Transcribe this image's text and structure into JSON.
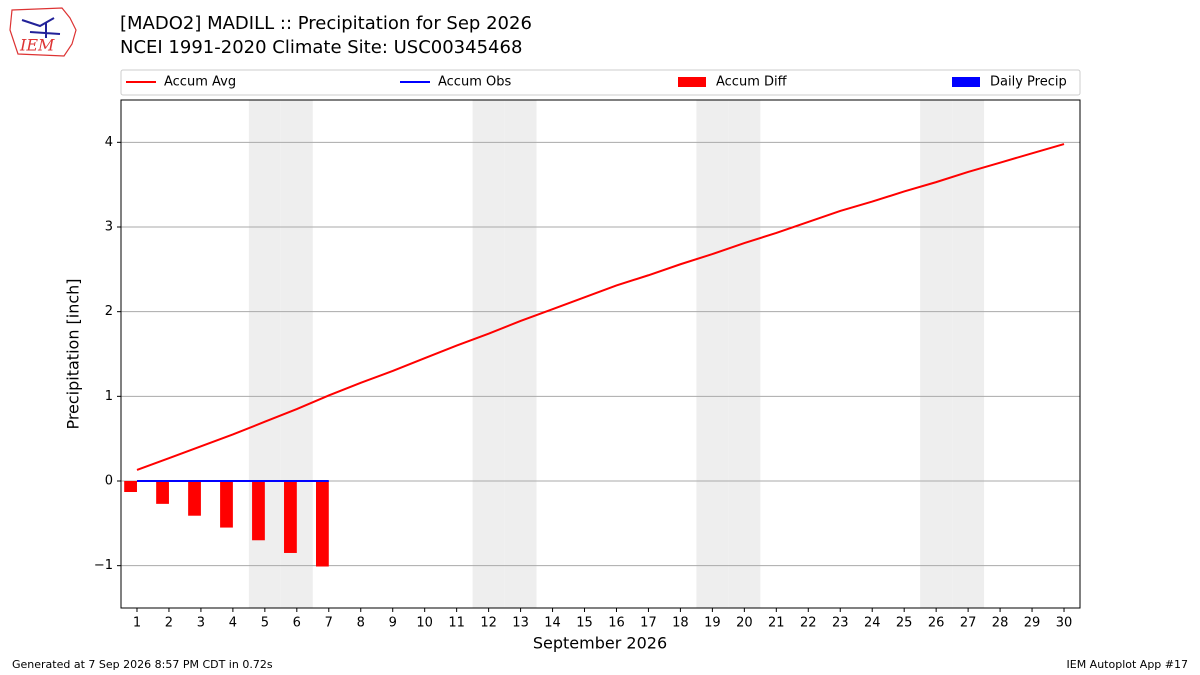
{
  "chart_data": {
    "type": "combo",
    "title": "[MADO2] MADILL :: Precipitation for Sep 2026",
    "subtitle": "NCEI 1991-2020 Climate Site: USC00345468",
    "logo_text": "IEM",
    "xlabel": "September 2026",
    "ylabel": "Precipitation [inch]",
    "x": [
      1,
      2,
      3,
      4,
      5,
      6,
      7,
      8,
      9,
      10,
      11,
      12,
      13,
      14,
      15,
      16,
      17,
      18,
      19,
      20,
      21,
      22,
      23,
      24,
      25,
      26,
      27,
      28,
      29,
      30
    ],
    "xlim": [
      0.5,
      30.5
    ],
    "xticks": [
      1,
      2,
      3,
      4,
      5,
      6,
      7,
      8,
      9,
      10,
      11,
      12,
      13,
      14,
      15,
      16,
      17,
      18,
      19,
      20,
      21,
      22,
      23,
      24,
      25,
      26,
      27,
      28,
      29,
      30
    ],
    "ylim": [
      -1.5,
      4.5
    ],
    "yticks": [
      {
        "value": -1,
        "label": "−1"
      },
      0,
      1,
      2,
      3,
      4
    ],
    "grid": true,
    "shaded_days": [
      5,
      6,
      12,
      13,
      19,
      20,
      26,
      27
    ],
    "series": [
      {
        "name": "Accum Avg",
        "type": "line",
        "color": "#ff0000",
        "values": [
          0.13,
          0.27,
          0.41,
          0.55,
          0.7,
          0.85,
          1.01,
          1.16,
          1.3,
          1.45,
          1.6,
          1.74,
          1.89,
          2.03,
          2.17,
          2.31,
          2.43,
          2.56,
          2.68,
          2.81,
          2.93,
          3.06,
          3.19,
          3.3,
          3.42,
          3.53,
          3.65,
          3.76,
          3.87,
          3.98
        ]
      },
      {
        "name": "Accum Obs",
        "type": "line",
        "color": "#0000ff",
        "values": [
          0,
          0,
          0,
          0,
          0,
          0,
          0,
          null,
          null,
          null,
          null,
          null,
          null,
          null,
          null,
          null,
          null,
          null,
          null,
          null,
          null,
          null,
          null,
          null,
          null,
          null,
          null,
          null,
          null,
          null
        ]
      },
      {
        "name": "Accum Diff",
        "type": "bar",
        "color": "#ff0000",
        "values": [
          -0.13,
          -0.27,
          -0.41,
          -0.55,
          -0.7,
          -0.85,
          -1.01,
          null,
          null,
          null,
          null,
          null,
          null,
          null,
          null,
          null,
          null,
          null,
          null,
          null,
          null,
          null,
          null,
          null,
          null,
          null,
          null,
          null,
          null,
          null
        ]
      },
      {
        "name": "Daily Precip",
        "type": "bar",
        "color": "#0000ff",
        "values": [
          0,
          0,
          0,
          0,
          0,
          0,
          0,
          null,
          null,
          null,
          null,
          null,
          null,
          null,
          null,
          null,
          null,
          null,
          null,
          null,
          null,
          null,
          null,
          null,
          null,
          null,
          null,
          null,
          null,
          null
        ]
      }
    ],
    "footer_left": "Generated at 7 Sep 2026 8:57 PM CDT in 0.72s",
    "footer_right": "IEM Autoplot App #17"
  }
}
